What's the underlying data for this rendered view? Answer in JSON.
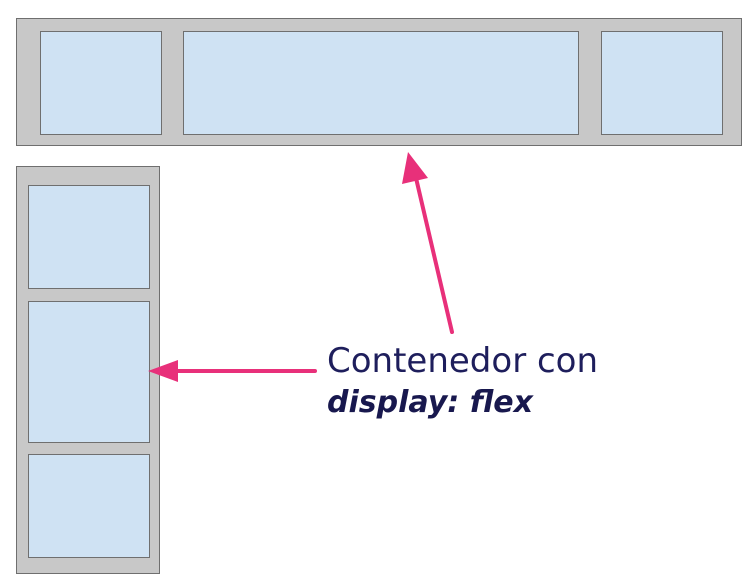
{
  "caption": {
    "line1": "Contenedor con",
    "line2": "display: flex"
  },
  "colors": {
    "container_fill": "#c8c8c8",
    "container_border": "#6f6f6f",
    "item_fill": "#cfe2f3",
    "arrow": "#e8307a",
    "text": "#1e1e5c"
  },
  "diagram": {
    "row_container_items": 3,
    "column_container_items": 3
  }
}
